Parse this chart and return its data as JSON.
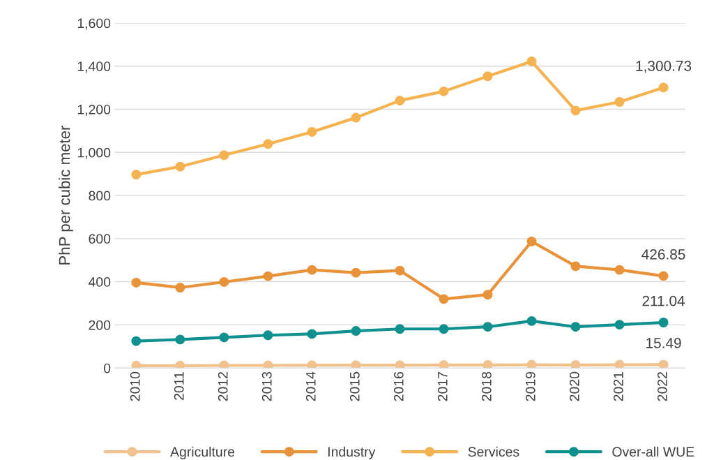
{
  "chart_data": {
    "type": "line",
    "ylabel": "PhP per cubic meter",
    "categories": [
      "2010",
      "2011",
      "2012",
      "2013",
      "2014",
      "2015",
      "2016",
      "2017",
      "2018",
      "2019",
      "2020",
      "2021",
      "2022"
    ],
    "series": [
      {
        "name": "Agriculture",
        "color": "#f1c18e",
        "values": [
          11,
          11,
          12,
          12,
          13,
          13,
          13,
          14,
          14,
          15,
          14,
          15,
          15.49
        ],
        "value_labels": [
          null,
          null,
          null,
          null,
          null,
          null,
          null,
          null,
          null,
          null,
          null,
          null,
          "15.49"
        ]
      },
      {
        "name": "Industry",
        "color": "#e8923a",
        "values": [
          396,
          373,
          399,
          426,
          455,
          442,
          452,
          320,
          340,
          587,
          472,
          455,
          426.85
        ],
        "value_labels": [
          null,
          null,
          null,
          null,
          null,
          null,
          null,
          null,
          null,
          null,
          null,
          null,
          "426.85"
        ]
      },
      {
        "name": "Services",
        "color": "#f4b350",
        "values": [
          897,
          934,
          987,
          1039,
          1095,
          1161,
          1240,
          1283,
          1353,
          1422,
          1194,
          1234,
          1300.73
        ],
        "value_labels": [
          null,
          null,
          null,
          null,
          null,
          null,
          null,
          null,
          null,
          null,
          null,
          null,
          "1,300.73"
        ]
      },
      {
        "name": "Over-all WUE",
        "color": "#10918f",
        "values": [
          125,
          132,
          142,
          152,
          158,
          172,
          181,
          181,
          191,
          218,
          191,
          201,
          211.04
        ],
        "value_labels": [
          null,
          null,
          null,
          null,
          null,
          null,
          null,
          null,
          null,
          null,
          null,
          null,
          "211.04"
        ]
      }
    ],
    "ylim": [
      0,
      1600
    ],
    "yticks": [
      {
        "value": 0,
        "label": "0"
      },
      {
        "value": 200,
        "label": "200"
      },
      {
        "value": 400,
        "label": "400"
      },
      {
        "value": 600,
        "label": "600"
      },
      {
        "value": 800,
        "label": "800"
      },
      {
        "value": 1000,
        "label": "1,000"
      },
      {
        "value": 1200,
        "label": "1,200"
      },
      {
        "value": 1400,
        "label": "1,400"
      },
      {
        "value": 1600,
        "label": "1,600"
      }
    ],
    "grid": "y",
    "legend": "bottom",
    "marker": "circle",
    "line_style": "solid"
  }
}
